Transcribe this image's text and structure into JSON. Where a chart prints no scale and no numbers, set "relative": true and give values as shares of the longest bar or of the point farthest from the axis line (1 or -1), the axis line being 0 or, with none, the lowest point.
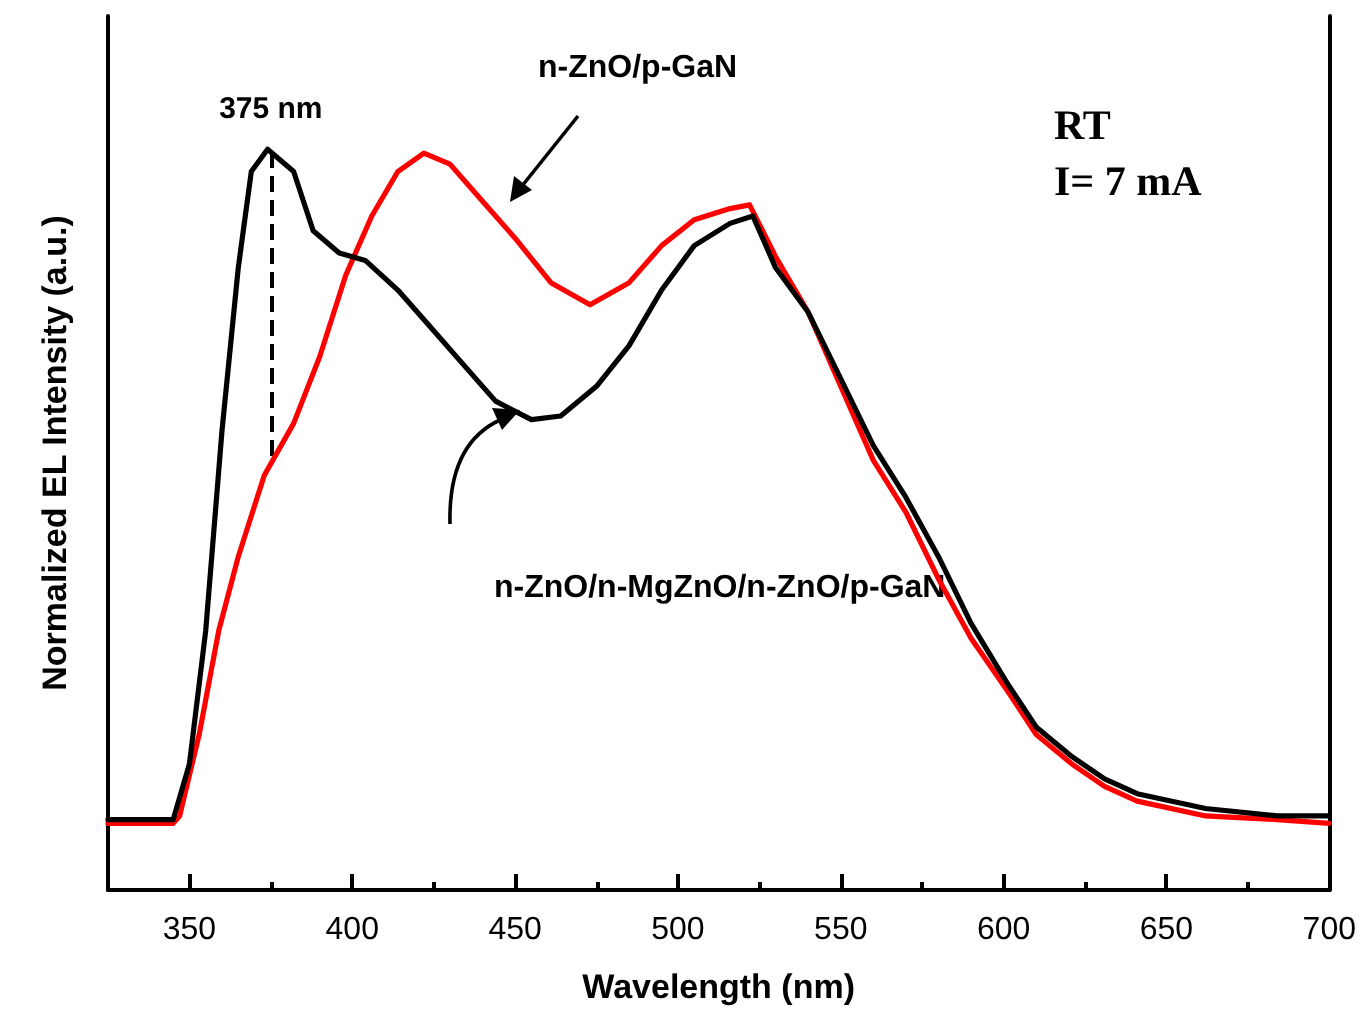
{
  "chart_data": {
    "type": "line",
    "relative": true,
    "xlabel": "Wavelength (nm)",
    "ylabel": "Normalized EL Intensity (a.u.)",
    "xlim": [
      325,
      700
    ],
    "xticks": [
      350,
      400,
      450,
      500,
      550,
      600,
      650,
      700
    ],
    "legend": false,
    "grid": false,
    "marker": "none",
    "line_style": "solid",
    "tick_labels": "x",
    "annotations": [
      "RT",
      "I= 7 mA"
    ],
    "ref_lines": [
      {
        "axis": "x",
        "value": 375,
        "label": "375 nm",
        "line_style": "dashed",
        "color": "#000000"
      }
    ],
    "series": [
      {
        "name": "n-ZnO/n-MgZnO/n-ZnO/p-GaN",
        "color": "#000000",
        "x": [
          325,
          345,
          350,
          355,
          360,
          365,
          369,
          374,
          382,
          388,
          396,
          404,
          414,
          424,
          434,
          444,
          455,
          464,
          475,
          485,
          495,
          505,
          516,
          523,
          530,
          540,
          550,
          560,
          570,
          580,
          590,
          601,
          610,
          621,
          631,
          641,
          662,
          684,
          700
        ],
        "values": [
          0.095,
          0.095,
          0.17,
          0.35,
          0.62,
          0.84,
          0.97,
          1.0,
          0.97,
          0.89,
          0.86,
          0.85,
          0.81,
          0.76,
          0.71,
          0.66,
          0.635,
          0.64,
          0.68,
          0.735,
          0.81,
          0.87,
          0.9,
          0.91,
          0.84,
          0.78,
          0.69,
          0.6,
          0.53,
          0.45,
          0.36,
          0.28,
          0.22,
          0.18,
          0.15,
          0.13,
          0.11,
          0.1,
          0.1
        ]
      },
      {
        "name": "n-ZnO/p-GaN",
        "color": "#ff0000",
        "x": [
          325,
          345,
          347,
          353,
          359,
          365,
          373,
          382,
          390,
          398,
          406,
          414,
          422,
          430,
          440,
          450,
          461,
          473,
          485,
          495,
          505,
          516,
          522,
          530,
          540,
          550,
          560,
          570,
          580,
          590,
          601,
          610,
          621,
          631,
          641,
          662,
          684,
          700
        ],
        "values": [
          0.09,
          0.09,
          0.1,
          0.21,
          0.35,
          0.45,
          0.56,
          0.63,
          0.72,
          0.83,
          0.91,
          0.97,
          0.995,
          0.98,
          0.93,
          0.88,
          0.82,
          0.79,
          0.82,
          0.87,
          0.905,
          0.92,
          0.925,
          0.855,
          0.78,
          0.68,
          0.58,
          0.51,
          0.42,
          0.34,
          0.27,
          0.21,
          0.17,
          0.14,
          0.12,
          0.1,
          0.095,
          0.09
        ]
      }
    ]
  }
}
